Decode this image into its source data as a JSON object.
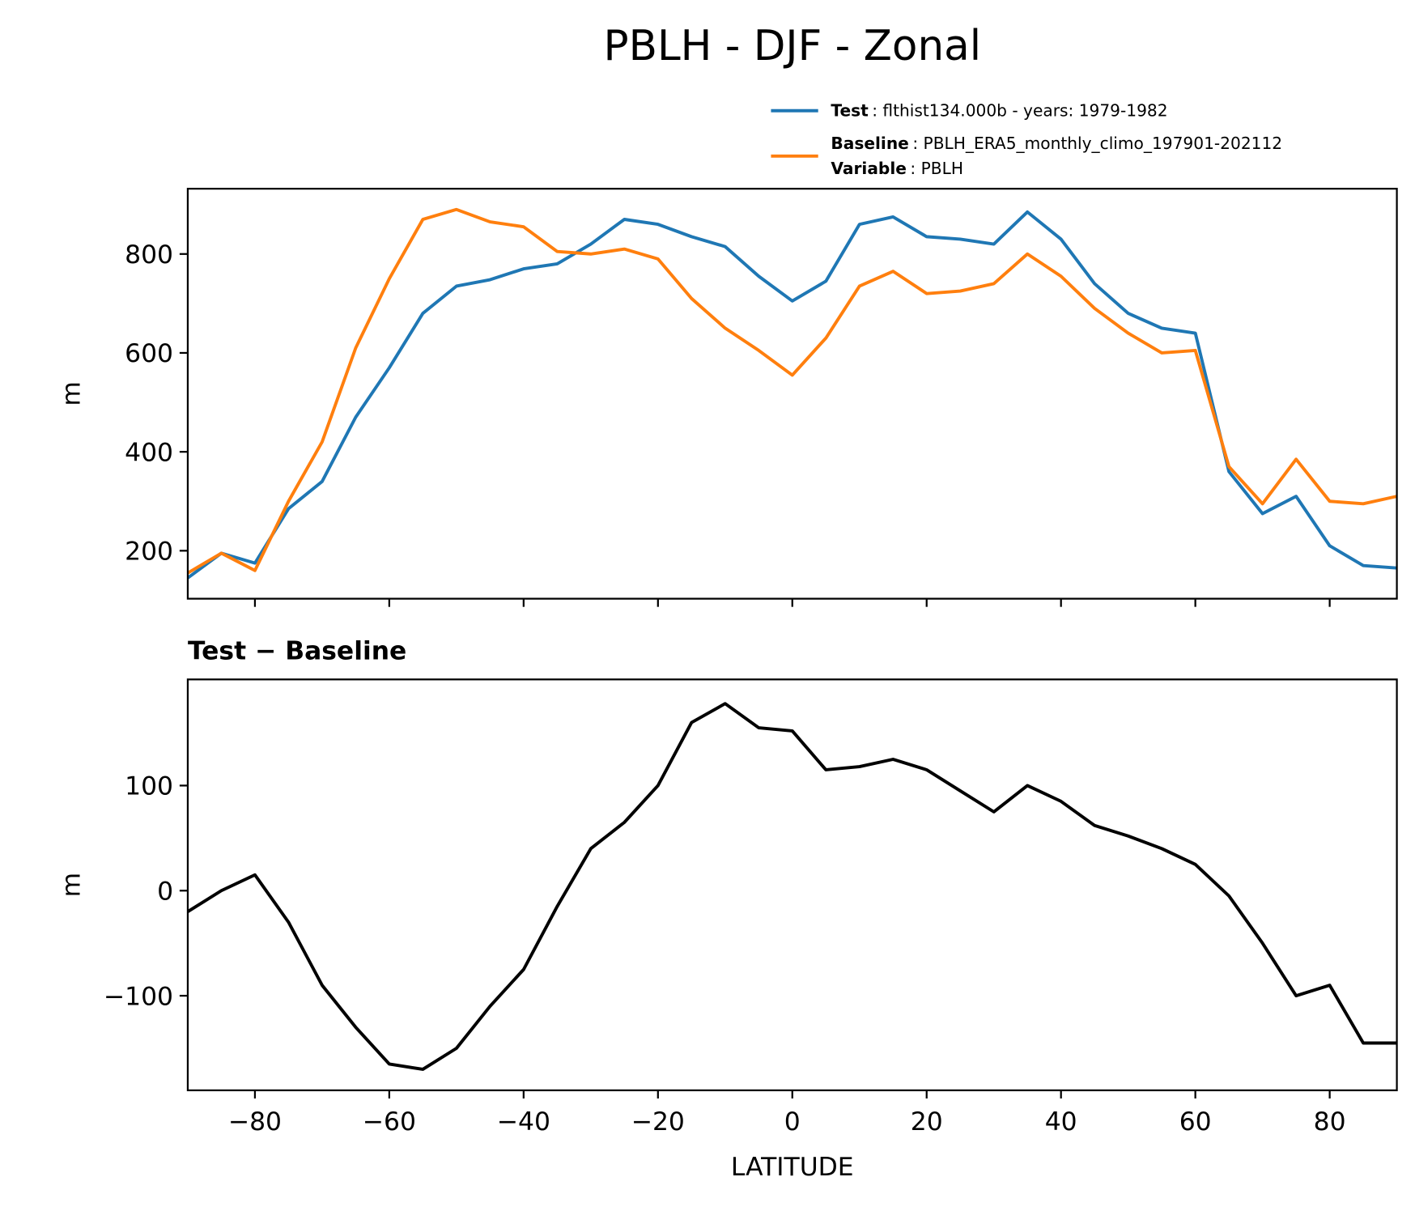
{
  "chart_data": [
    {
      "type": "line",
      "title": "PBLH - DJF - Zonal",
      "ylabel": "m",
      "x": [
        -90,
        -85,
        -80,
        -75,
        -70,
        -65,
        -60,
        -55,
        -50,
        -45,
        -40,
        -35,
        -30,
        -25,
        -20,
        -15,
        -10,
        -5,
        0,
        5,
        10,
        15,
        20,
        25,
        30,
        35,
        40,
        45,
        50,
        55,
        60,
        65,
        70,
        75,
        80,
        85,
        90
      ],
      "series": [
        {
          "name": "Test",
          "info": ": flthist134.000b - years: 1979-1982",
          "color": "#1f77b4",
          "values": [
            145,
            195,
            175,
            285,
            340,
            470,
            570,
            680,
            735,
            748,
            770,
            780,
            820,
            870,
            860,
            835,
            815,
            755,
            705,
            745,
            860,
            875,
            835,
            830,
            820,
            885,
            830,
            740,
            680,
            650,
            640,
            360,
            275,
            310,
            210,
            170,
            165
          ]
        },
        {
          "name": "Baseline",
          "info": ": PBLH_ERA5_monthly_climo_197901-202112",
          "color": "#ff7f0e",
          "values": [
            155,
            195,
            160,
            300,
            420,
            610,
            750,
            870,
            890,
            865,
            855,
            805,
            800,
            810,
            790,
            710,
            650,
            605,
            555,
            630,
            735,
            765,
            720,
            725,
            740,
            800,
            755,
            690,
            640,
            600,
            605,
            370,
            295,
            385,
            300,
            295,
            310
          ]
        }
      ],
      "legend_extra": {
        "name": "Variable",
        "info": ": PBLH"
      },
      "xlim": [
        -90,
        90
      ],
      "ylim": [
        103,
        932
      ],
      "xticks": [
        -80,
        -60,
        -40,
        -20,
        0,
        20,
        40,
        60,
        80
      ],
      "yticks": [
        200,
        400,
        600,
        800
      ]
    },
    {
      "type": "line",
      "subtitle": "Test − Baseline",
      "ylabel": "m",
      "xlabel": "LATITUDE",
      "x": [
        -90,
        -85,
        -80,
        -75,
        -70,
        -65,
        -60,
        -55,
        -50,
        -45,
        -40,
        -35,
        -30,
        -25,
        -20,
        -15,
        -10,
        -5,
        0,
        5,
        10,
        15,
        20,
        25,
        30,
        35,
        40,
        45,
        50,
        55,
        60,
        65,
        70,
        75,
        80,
        85,
        90
      ],
      "series": [
        {
          "color": "#000000",
          "values": [
            -20,
            0,
            15,
            -30,
            -90,
            -130,
            -165,
            -170,
            -150,
            -110,
            -75,
            -15,
            40,
            65,
            100,
            160,
            178,
            155,
            152,
            115,
            118,
            125,
            115,
            95,
            75,
            100,
            85,
            62,
            52,
            40,
            25,
            -5,
            -50,
            -100,
            -90,
            -145,
            -145
          ]
        }
      ],
      "xlim": [
        -90,
        90
      ],
      "ylim": [
        -190,
        201
      ],
      "xticks": [
        {
          "value": -80,
          "label": "−80"
        },
        {
          "value": -60,
          "label": "−60"
        },
        {
          "value": -40,
          "label": "−40"
        },
        {
          "value": -20,
          "label": "−20"
        },
        0,
        20,
        40,
        60,
        80
      ],
      "yticks": [
        {
          "value": -100,
          "label": "−100"
        },
        0,
        100
      ]
    }
  ]
}
